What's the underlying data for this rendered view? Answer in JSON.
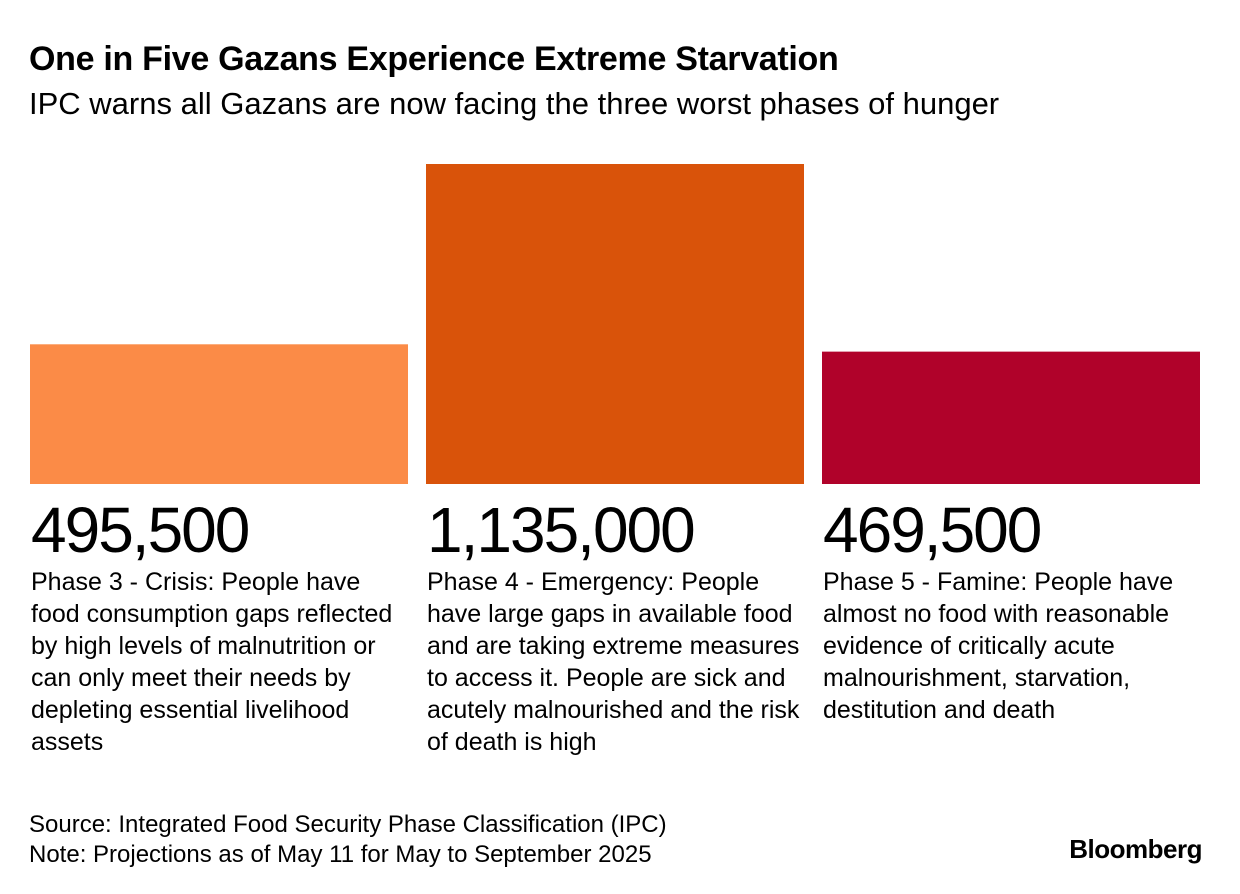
{
  "title": "One in Five Gazans Experience Extreme Starvation",
  "subtitle": "IPC warns all Gazans are now facing the three worst phases of hunger",
  "chart_data": {
    "type": "bar",
    "title": "One in Five Gazans Experience Extreme Starvation",
    "subtitle": "IPC warns all Gazans are now facing the three worst phases of hunger",
    "categories": [
      "Phase 3 - Crisis",
      "Phase 4 - Emergency",
      "Phase 5 - Famine"
    ],
    "values": [
      495500,
      1135000,
      469500
    ],
    "value_labels": [
      "495,500",
      "1,135,000",
      "469,500"
    ],
    "descriptions": [
      "Phase 3 - Crisis: People have food consumption gaps reflected by high levels of malnutrition or can only meet their needs by depleting essential livelihood assets",
      "Phase 4 - Emergency: People have large gaps in available food and are taking extreme measures to access it. People are sick and acutely malnourished and the risk of death is high",
      "Phase 5 - Famine: People have almost no food with reasonable evidence of critically acute malnourishment, starvation, destitution and death"
    ],
    "colors": [
      "#fb8b47",
      "#d9530a",
      "#b0022a"
    ],
    "xlabel": "",
    "ylabel": "",
    "ylim": [
      0,
      1135000
    ],
    "grid": false,
    "legend": "none"
  },
  "footer": {
    "source": "Source: Integrated Food Security Phase Classification (IPC)",
    "note": "Note: Projections as of May 11 for May to September 2025"
  },
  "logo": "Bloomberg"
}
